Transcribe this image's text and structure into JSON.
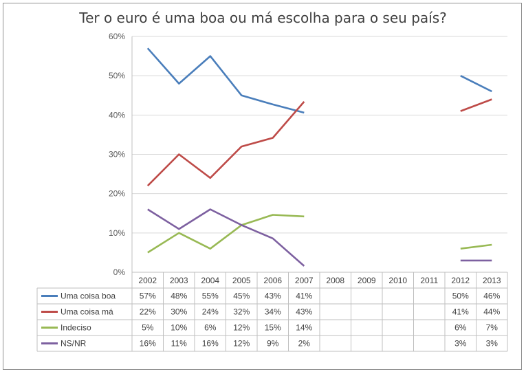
{
  "chart_data": {
    "type": "line",
    "title": "Ter o euro é uma boa ou má escolha para o seu país?",
    "categories": [
      "2002",
      "2003",
      "2004",
      "2005",
      "2006",
      "2007",
      "2008",
      "2009",
      "2010",
      "2011",
      "2012",
      "2013"
    ],
    "y_tick_labels": [
      "0%",
      "10%",
      "20%",
      "30%",
      "40%",
      "50%",
      "60%"
    ],
    "ylim": [
      0,
      60
    ],
    "grid": true,
    "legend": "data-table-below",
    "series": [
      {
        "name": "Uma coisa boa",
        "color": "#4a7ebb",
        "values": [
          57,
          48,
          55,
          45,
          42.7,
          40.6,
          null,
          null,
          null,
          null,
          50,
          46
        ],
        "labels": [
          "57%",
          "48%",
          "55%",
          "45%",
          "43%",
          "41%",
          "",
          "",
          "",
          "",
          "50%",
          "46%"
        ]
      },
      {
        "name": "Uma coisa má",
        "color": "#be4b48",
        "values": [
          22,
          30,
          24,
          32,
          34.2,
          43.4,
          null,
          null,
          null,
          null,
          41,
          44
        ],
        "labels": [
          "22%",
          "30%",
          "24%",
          "32%",
          "34%",
          "43%",
          "",
          "",
          "",
          "",
          "41%",
          "44%"
        ]
      },
      {
        "name": "Indeciso",
        "color": "#98b954",
        "values": [
          5,
          10,
          6,
          12,
          14.6,
          14.2,
          null,
          null,
          null,
          null,
          6,
          7
        ],
        "labels": [
          "5%",
          "10%",
          "6%",
          "12%",
          "15%",
          "14%",
          "",
          "",
          "",
          "",
          "6%",
          "7%"
        ]
      },
      {
        "name": "NS/NR",
        "color": "#7d60a0",
        "values": [
          16,
          11,
          16,
          12,
          8.6,
          1.6,
          null,
          null,
          null,
          null,
          3,
          3
        ],
        "labels": [
          "16%",
          "11%",
          "16%",
          "12%",
          "9%",
          "2%",
          "",
          "",
          "",
          "",
          "3%",
          "3%"
        ]
      }
    ]
  }
}
